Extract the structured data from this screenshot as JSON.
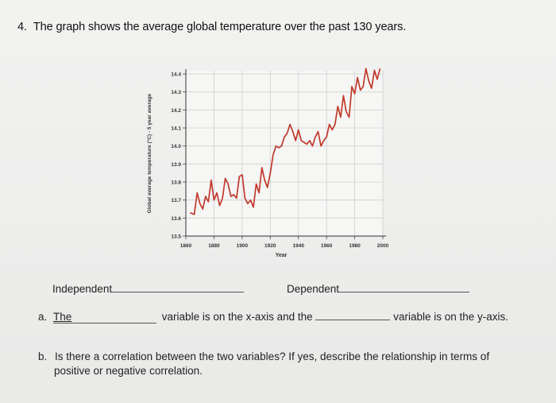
{
  "question": {
    "number": "4.",
    "text": "The graph shows the average global temperature over the past 130 years."
  },
  "chart_data": {
    "type": "line",
    "ylabel": "Global average temperature (°C) - 5 year average",
    "xlabel": "Year",
    "xlim": [
      1860,
      2000
    ],
    "ylim": [
      13.5,
      14.4
    ],
    "x_ticks": [
      "1860",
      "1880",
      "1900",
      "1920",
      "1940",
      "1960",
      "1980",
      "2000"
    ],
    "y_ticks": [
      "14.4",
      "14.3",
      "14.2",
      "14.1",
      "14.0",
      "13.9",
      "13.8",
      "13.7",
      "13.6",
      "13.5"
    ],
    "grid": true,
    "series": [
      {
        "color": "#c0392b",
        "x": [
          1863,
          1866,
          1868,
          1870,
          1872,
          1874,
          1876,
          1878,
          1880,
          1882,
          1884,
          1886,
          1888,
          1890,
          1892,
          1894,
          1896,
          1898,
          1900,
          1902,
          1904,
          1906,
          1908,
          1910,
          1912,
          1914,
          1916,
          1918,
          1920,
          1922,
          1924,
          1926,
          1928,
          1930,
          1932,
          1934,
          1936,
          1938,
          1940,
          1942,
          1944,
          1946,
          1948,
          1950,
          1952,
          1954,
          1956,
          1958,
          1960,
          1962,
          1964,
          1966,
          1968,
          1970,
          1972,
          1974,
          1976,
          1978,
          1980,
          1982,
          1984,
          1986,
          1988,
          1990,
          1992,
          1994,
          1996,
          1998
        ],
        "y": [
          13.63,
          13.62,
          13.74,
          13.68,
          13.65,
          13.72,
          13.69,
          13.81,
          13.7,
          13.74,
          13.67,
          13.71,
          13.82,
          13.79,
          13.72,
          13.73,
          13.71,
          13.83,
          13.84,
          13.71,
          13.68,
          13.7,
          13.66,
          13.79,
          13.74,
          13.88,
          13.81,
          13.77,
          13.85,
          13.95,
          14.0,
          13.99,
          14.0,
          14.05,
          14.07,
          14.12,
          14.08,
          14.03,
          14.09,
          14.03,
          14.02,
          14.01,
          14.03,
          14.0,
          14.05,
          14.08,
          14.0,
          14.03,
          14.05,
          14.12,
          14.09,
          14.12,
          14.22,
          14.16,
          14.28,
          14.19,
          14.16,
          14.33,
          14.29,
          14.38,
          14.31,
          14.33,
          14.43,
          14.36,
          14.32,
          14.42,
          14.37,
          14.43
        ]
      }
    ]
  },
  "fill_in": {
    "independent_label": "Independent",
    "dependent_label": "Dependent",
    "a_label": "a.",
    "a_prefix": "The",
    "a_middle": "variable is on the x-axis and the",
    "a_suffix": "variable is on the y-axis."
  },
  "part_b": {
    "label": "b.",
    "line1": "Is there a correlation between the two variables?  If yes, describe the relationship in terms of",
    "line2": "positive or negative correlation."
  }
}
